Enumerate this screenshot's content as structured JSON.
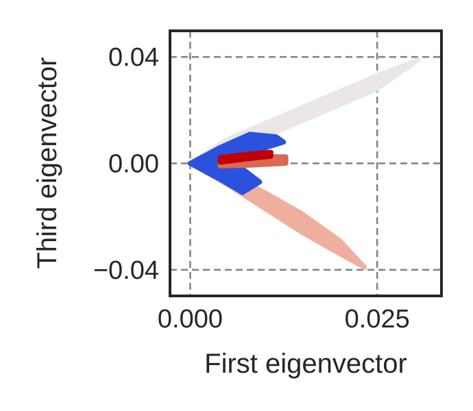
{
  "chart_data": {
    "type": "scatter",
    "title": "",
    "xlabel": "First eigenvector",
    "ylabel": "Third eigenvector",
    "xlim": [
      -0.0027,
      0.0336
    ],
    "ylim": [
      -0.0498,
      0.0498
    ],
    "xticks": [
      0.0,
      0.025
    ],
    "xtick_labels": [
      "0.000",
      "0.025"
    ],
    "yticks": [
      -0.04,
      0.0,
      0.04
    ],
    "ytick_labels": [
      "−0.04",
      "0.00",
      "0.04"
    ],
    "grid": true,
    "grid_style": "dashed",
    "legend": "none",
    "series": [
      {
        "color": "#ebe6e8",
        "upper": [
          [
            0.0,
            0.0
          ],
          [
            0.005,
            0.009
          ],
          [
            0.01,
            0.015
          ],
          [
            0.015,
            0.021
          ],
          [
            0.02,
            0.027
          ],
          [
            0.025,
            0.033
          ],
          [
            0.0305,
            0.039
          ]
        ],
        "lower": [
          [
            0.0,
            0.0
          ],
          [
            0.005,
            0.005
          ],
          [
            0.01,
            0.01
          ],
          [
            0.015,
            0.016
          ],
          [
            0.02,
            0.022
          ],
          [
            0.025,
            0.028
          ],
          [
            0.0305,
            0.039
          ]
        ]
      },
      {
        "color": "#efaf9f",
        "upper": [
          [
            0.0,
            0.0
          ],
          [
            0.005,
            -0.004
          ],
          [
            0.01,
            -0.011
          ],
          [
            0.015,
            -0.019
          ],
          [
            0.02,
            -0.029
          ],
          [
            0.0233,
            -0.039
          ]
        ],
        "lower": [
          [
            0.0,
            0.0
          ],
          [
            0.005,
            -0.008
          ],
          [
            0.01,
            -0.017
          ],
          [
            0.015,
            -0.026
          ],
          [
            0.02,
            -0.034
          ],
          [
            0.0233,
            -0.039
          ]
        ]
      },
      {
        "color": "#2a52dc",
        "upper": [
          [
            0.0,
            0.0
          ],
          [
            0.004,
            0.006
          ],
          [
            0.008,
            0.011
          ],
          [
            0.0115,
            0.01
          ],
          [
            0.0125,
            0.008
          ]
        ],
        "lower": [
          [
            0.0,
            0.0
          ],
          [
            0.004,
            0.0
          ],
          [
            0.008,
            0.004
          ],
          [
            0.0125,
            0.008
          ]
        ]
      },
      {
        "color": "#2a52dc",
        "upper": [
          [
            0.0,
            0.0
          ],
          [
            0.004,
            0.001
          ],
          [
            0.007,
            -0.002
          ],
          [
            0.0093,
            -0.007
          ]
        ],
        "lower": [
          [
            0.0,
            0.0
          ],
          [
            0.004,
            -0.006
          ],
          [
            0.007,
            -0.011
          ],
          [
            0.0093,
            -0.007
          ]
        ]
      },
      {
        "color": "#d96a52",
        "upper": [
          [
            0.004,
            0.001
          ],
          [
            0.008,
            0.0025
          ],
          [
            0.0128,
            0.0025
          ]
        ],
        "lower": [
          [
            0.004,
            -0.001
          ],
          [
            0.008,
            -0.0007
          ],
          [
            0.0128,
            0.0
          ]
        ]
      },
      {
        "color": "#c00000",
        "upper": [
          [
            0.004,
            0.0022
          ],
          [
            0.008,
            0.0036
          ],
          [
            0.0108,
            0.0042
          ]
        ],
        "lower": [
          [
            0.004,
            0.0004
          ],
          [
            0.008,
            0.0018
          ],
          [
            0.0108,
            0.0026
          ]
        ]
      }
    ]
  }
}
